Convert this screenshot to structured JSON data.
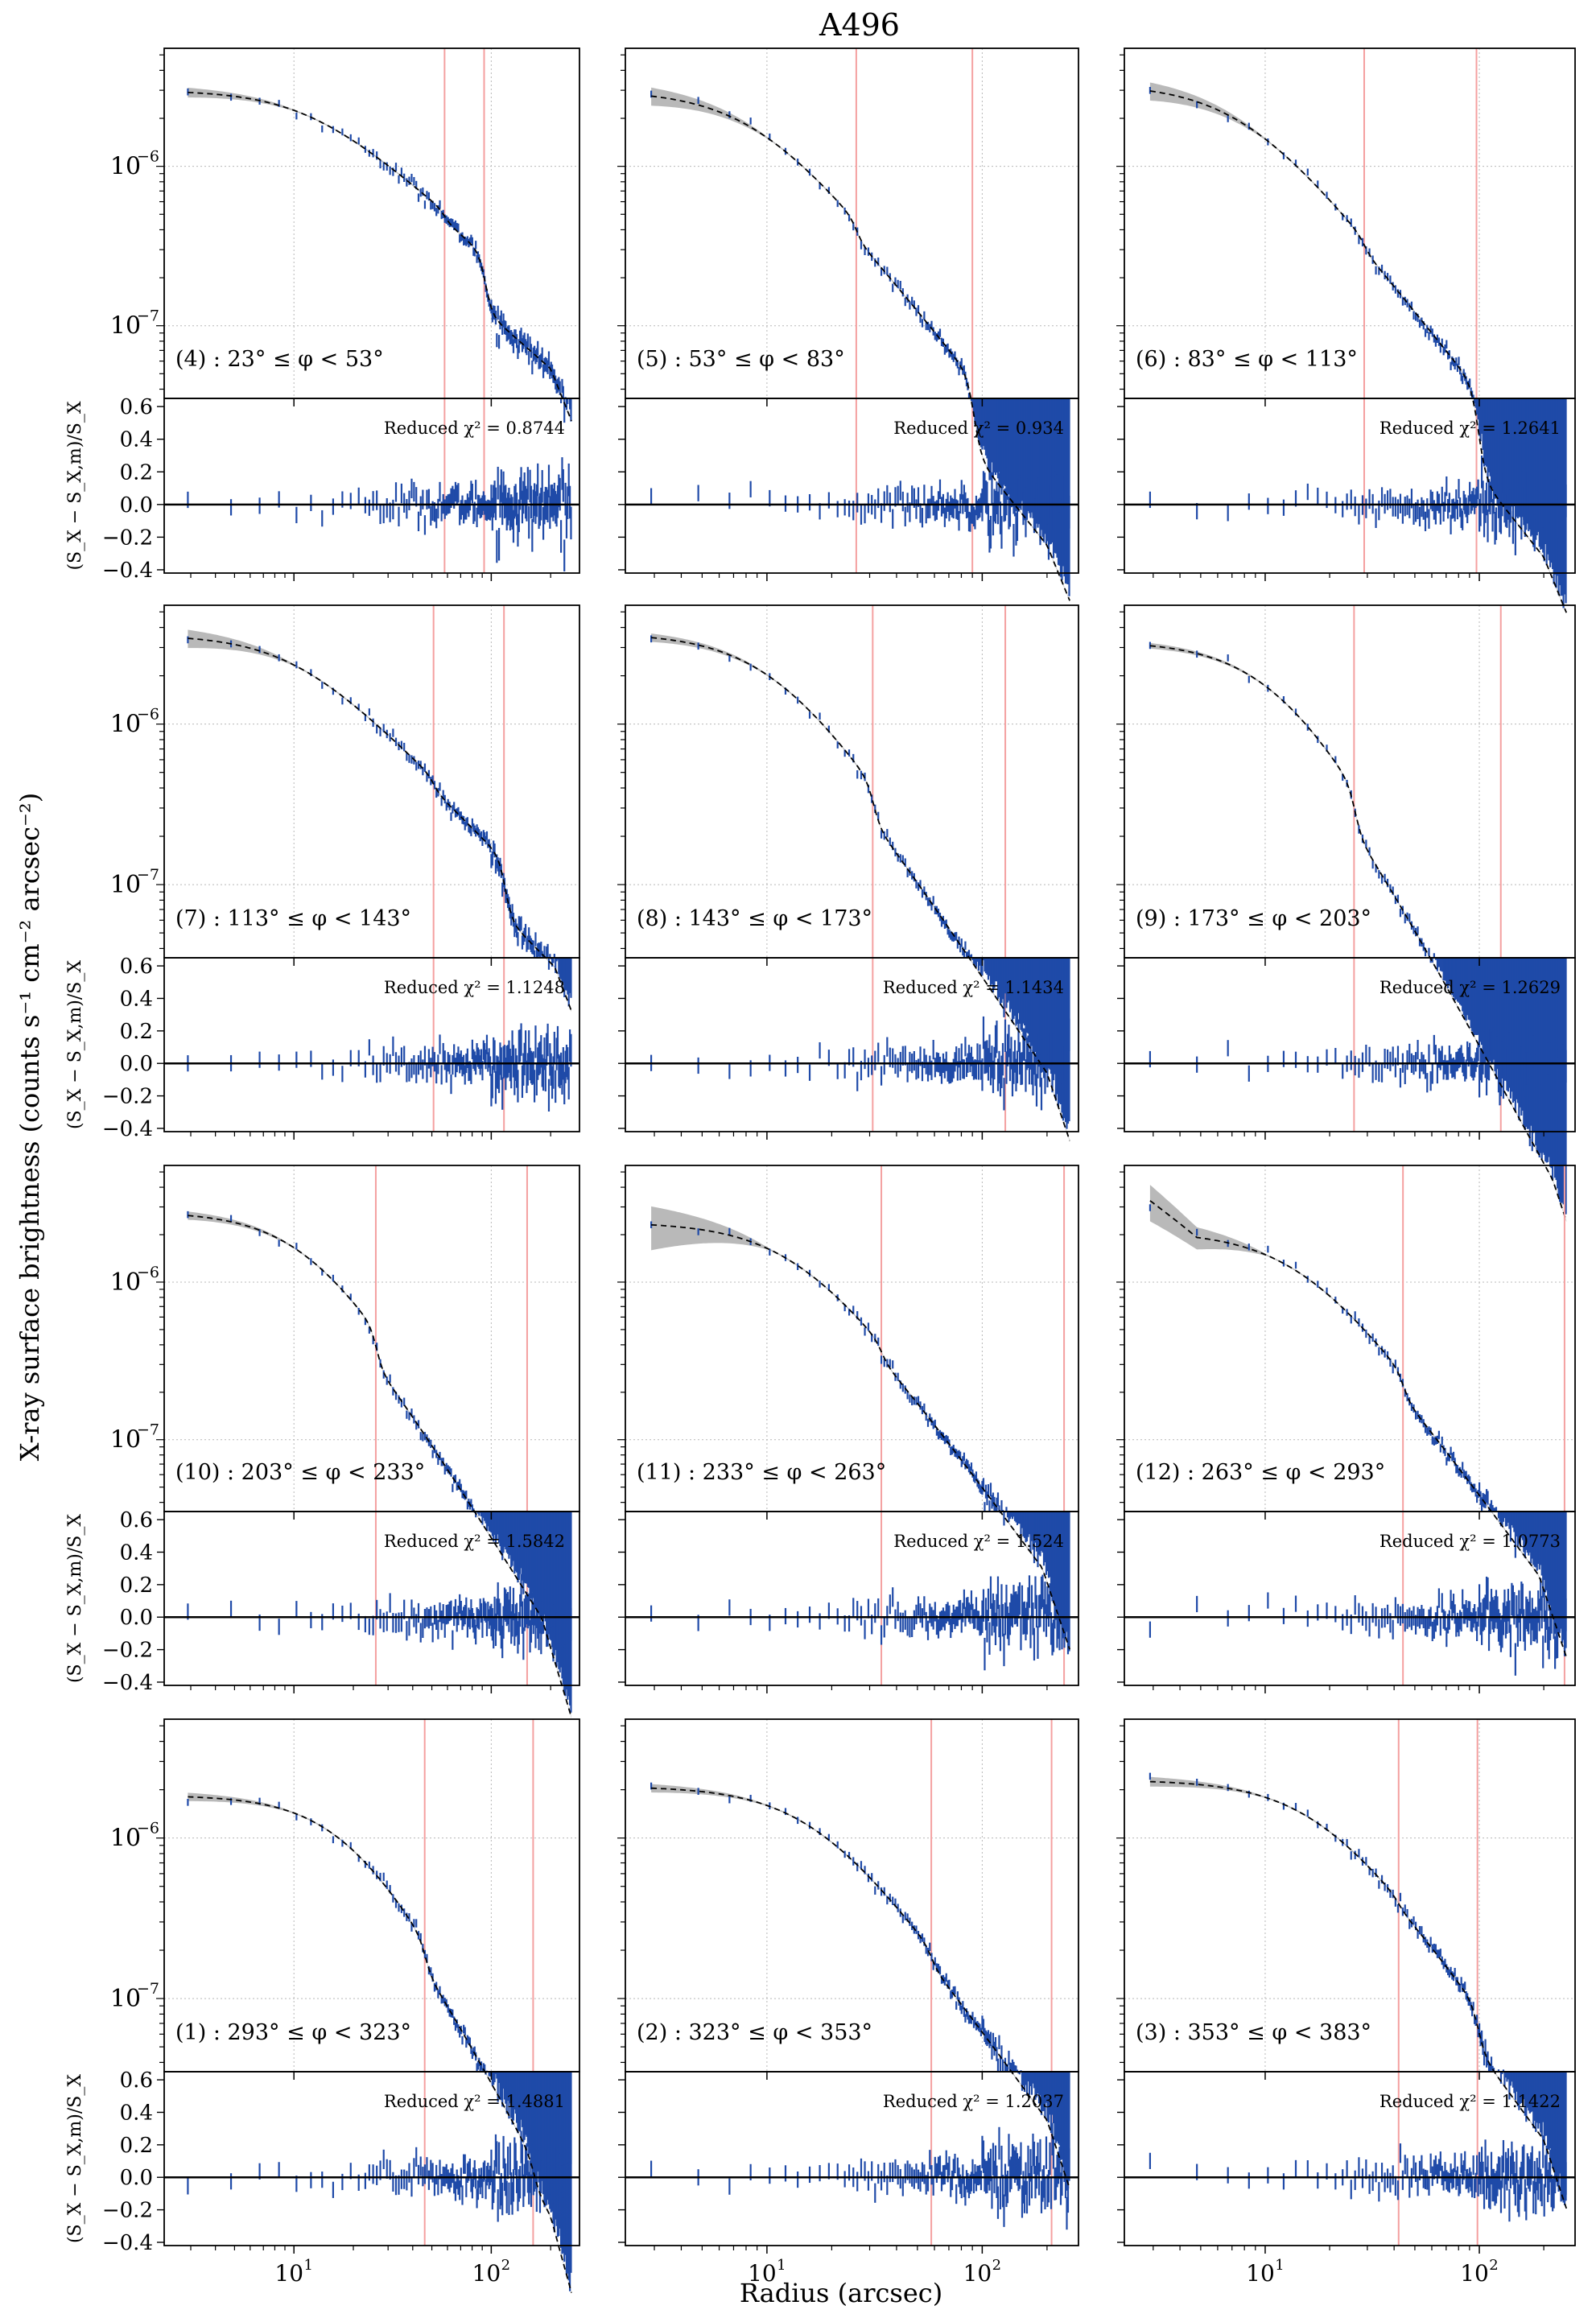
{
  "figure": {
    "title": "A496",
    "ylabel_main": "X-ray surface brightness (counts s⁻¹ cm⁻² arcsec⁻²)",
    "ylabel_resid": "(S_X − S_X,m)/S_X",
    "xlabel": "Radius (arcsec)",
    "chi_prefix": "Reduced χ² = "
  },
  "colors": {
    "data": "#1f4aa8",
    "model": "#000000",
    "band": "#a8a8a8",
    "vline": "#f4a0a0",
    "grid": "#b8b8b8"
  },
  "chart_data": [
    {
      "type": "scatter",
      "label": "(4) : 23° ≤ φ < 53°",
      "chi2": "0.8744",
      "xlim": [
        2.2,
        280
      ],
      "ylim": [
        3.5e-08,
        5.5e-06
      ],
      "xscale": "log",
      "yscale": "log",
      "resid_ylim": [
        -0.42,
        0.65
      ],
      "vlines": [
        58,
        92
      ],
      "profile": {
        "A": 3e-06,
        "rc": 12,
        "beta": 0.7,
        "jumps": [
          [
            58,
            0.88
          ],
          [
            92,
            0.45
          ]
        ],
        "cut": [
          200,
          0.5
        ]
      },
      "band_width_inner": 0.06
    },
    {
      "type": "scatter",
      "label": "(5) : 53° ≤ φ < 83°",
      "chi2": "0.934",
      "xlim": [
        2.2,
        280
      ],
      "ylim": [
        3.5e-08,
        5.5e-06
      ],
      "xscale": "log",
      "yscale": "log",
      "resid_ylim": [
        -0.42,
        0.65
      ],
      "vlines": [
        26,
        90
      ],
      "profile": {
        "A": 3e-06,
        "rc": 9,
        "beta": 0.9,
        "jumps": [
          [
            26,
            0.78
          ],
          [
            90,
            0.35
          ]
        ],
        "cut": [
          200,
          0.6
        ]
      },
      "band_width_inner": 0.12
    },
    {
      "type": "scatter",
      "label": "(6) : 83° ≤ φ < 113°",
      "chi2": "1.2641",
      "xlim": [
        2.2,
        280
      ],
      "ylim": [
        3.5e-08,
        5.5e-06
      ],
      "xscale": "log",
      "yscale": "log",
      "resid_ylim": [
        -0.42,
        0.65
      ],
      "vlines": [
        29,
        97
      ],
      "profile": {
        "A": 3.3e-06,
        "rc": 8,
        "beta": 0.9,
        "jumps": [
          [
            29,
            0.85
          ],
          [
            97,
            0.3
          ]
        ],
        "cut": [
          200,
          0.6
        ]
      },
      "band_width_inner": 0.12
    },
    {
      "type": "scatter",
      "label": "(7) : 113° ≤ φ < 143°",
      "chi2": "1.1248",
      "xlim": [
        2.2,
        280
      ],
      "ylim": [
        3.5e-08,
        5.5e-06
      ],
      "xscale": "log",
      "yscale": "log",
      "resid_ylim": [
        -0.42,
        0.65
      ],
      "vlines": [
        51,
        116
      ],
      "profile": {
        "A": 3.6e-06,
        "rc": 10,
        "beta": 0.75,
        "jumps": [
          [
            51,
            0.85
          ],
          [
            116,
            0.45
          ]
        ],
        "cut": [
          210,
          0.5
        ]
      },
      "band_width_inner": 0.12
    },
    {
      "type": "scatter",
      "label": "(8) : 143° ≤ φ < 173°",
      "chi2": "1.1434",
      "xlim": [
        2.2,
        280
      ],
      "ylim": [
        3.5e-08,
        5.5e-06
      ],
      "xscale": "log",
      "yscale": "log",
      "resid_ylim": [
        -0.42,
        0.65
      ],
      "vlines": [
        31,
        128
      ],
      "profile": {
        "A": 3.7e-06,
        "rc": 11,
        "beta": 1.0,
        "jumps": [
          [
            31,
            0.6
          ]
        ],
        "cut": [
          200,
          0.5
        ]
      },
      "band_width_inner": 0.05
    },
    {
      "type": "scatter",
      "label": "(9) : 173° ≤ φ < 203°",
      "chi2": "1.2629",
      "xlim": [
        2.2,
        280
      ],
      "ylim": [
        3.5e-08,
        5.5e-06
      ],
      "xscale": "log",
      "yscale": "log",
      "resid_ylim": [
        -0.42,
        0.65
      ],
      "vlines": [
        26,
        126
      ],
      "profile": {
        "A": 3.3e-06,
        "rc": 12,
        "beta": 1.15,
        "jumps": [
          [
            26,
            0.55
          ]
        ],
        "cut": [
          220,
          0.6
        ]
      },
      "band_width_inner": 0.03
    },
    {
      "type": "scatter",
      "label": "(10) : 203° ≤ φ < 233°",
      "chi2": "1.5842",
      "xlim": [
        2.2,
        280
      ],
      "ylim": [
        3.5e-08,
        5.5e-06
      ],
      "xscale": "log",
      "yscale": "log",
      "resid_ylim": [
        -0.42,
        0.65
      ],
      "vlines": [
        26,
        152
      ],
      "profile": {
        "A": 2.8e-06,
        "rc": 12,
        "beta": 1.0,
        "jumps": [
          [
            26,
            0.6
          ]
        ],
        "cut": [
          180,
          0.45
        ]
      },
      "band_width_inner": 0.05
    },
    {
      "type": "scatter",
      "label": "(11) : 233° ≤ φ < 263°",
      "chi2": "1.524",
      "xlim": [
        2.2,
        280
      ],
      "ylim": [
        3.5e-08,
        5.5e-06
      ],
      "xscale": "log",
      "yscale": "log",
      "resid_ylim": [
        -0.42,
        0.65
      ],
      "vlines": [
        34,
        240
      ],
      "profile": {
        "A": 2.4e-06,
        "rc": 14,
        "beta": 0.95,
        "jumps": [
          [
            34,
            0.8
          ]
        ],
        "cut": [
          190,
          0.45
        ]
      },
      "band_width_inner": 0.3
    },
    {
      "type": "scatter",
      "label": "(12) : 263° ≤ φ < 293°",
      "chi2": "1.0773",
      "xlim": [
        2.2,
        280
      ],
      "ylim": [
        3.5e-08,
        5.5e-06
      ],
      "xscale": "log",
      "yscale": "log",
      "resid_ylim": [
        -0.42,
        0.65
      ],
      "vlines": [
        44,
        250
      ],
      "profile": {
        "A": 2.1e-06,
        "rc": 15,
        "beta": 0.95,
        "jumps": [
          [
            44,
            0.72
          ]
        ],
        "cut": [
          190,
          0.45
        ],
        "inner": [
          4.8,
          3.4e-06
        ]
      },
      "band_width_inner": 0.25
    },
    {
      "type": "scatter",
      "label": "(1) : 293° ≤ φ < 323°",
      "chi2": "1.4881",
      "xlim": [
        2.2,
        280
      ],
      "ylim": [
        3.5e-08,
        5.5e-06
      ],
      "xscale": "log",
      "yscale": "log",
      "resid_ylim": [
        -0.42,
        0.65
      ],
      "vlines": [
        46,
        163
      ],
      "profile": {
        "A": 1.85e-06,
        "rc": 20,
        "beta": 1.1,
        "jumps": [
          [
            46,
            0.68
          ],
          [
            163,
            0.7
          ]
        ],
        "cut": [
          200,
          0.45
        ]
      },
      "band_width_inner": 0.05
    },
    {
      "type": "scatter",
      "label": "(2) : 323° ≤ φ < 353°",
      "chi2": "1.2037",
      "xlim": [
        2.2,
        280
      ],
      "ylim": [
        3.5e-08,
        5.5e-06
      ],
      "xscale": "log",
      "yscale": "log",
      "resid_ylim": [
        -0.42,
        0.65
      ],
      "vlines": [
        58,
        210
      ],
      "profile": {
        "A": 2.1e-06,
        "rc": 17,
        "beta": 0.95,
        "jumps": [
          [
            58,
            0.8
          ]
        ],
        "cut": [
          200,
          0.45
        ]
      },
      "band_width_inner": 0.05
    },
    {
      "type": "scatter",
      "label": "(3) : 353° ≤ φ < 383°",
      "chi2": "1.1422",
      "xlim": [
        2.2,
        280
      ],
      "ylim": [
        3.5e-08,
        5.5e-06
      ],
      "xscale": "log",
      "yscale": "log",
      "resid_ylim": [
        -0.42,
        0.65
      ],
      "vlines": [
        42,
        98
      ],
      "profile": {
        "A": 2.3e-06,
        "rc": 18,
        "beta": 0.95,
        "jumps": [
          [
            42,
            0.9
          ],
          [
            98,
            0.55
          ]
        ],
        "cut": [
          200,
          0.45
        ]
      },
      "band_width_inner": 0.06
    }
  ]
}
